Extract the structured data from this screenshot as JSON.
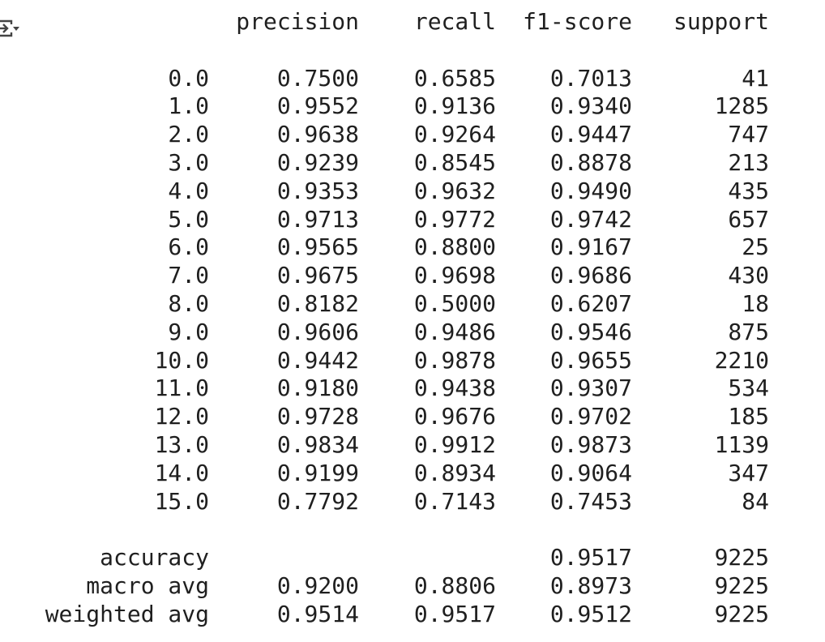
{
  "toolbar": {
    "output_icon": "output-menu-icon"
  },
  "report": {
    "headers": {
      "label": "",
      "precision": "precision",
      "recall": "recall",
      "f1": "f1-score",
      "support": "support"
    },
    "rows": [
      {
        "label": "0.0",
        "precision": "0.7500",
        "recall": "0.6585",
        "f1": "0.7013",
        "support": "41"
      },
      {
        "label": "1.0",
        "precision": "0.9552",
        "recall": "0.9136",
        "f1": "0.9340",
        "support": "1285"
      },
      {
        "label": "2.0",
        "precision": "0.9638",
        "recall": "0.9264",
        "f1": "0.9447",
        "support": "747"
      },
      {
        "label": "3.0",
        "precision": "0.9239",
        "recall": "0.8545",
        "f1": "0.8878",
        "support": "213"
      },
      {
        "label": "4.0",
        "precision": "0.9353",
        "recall": "0.9632",
        "f1": "0.9490",
        "support": "435"
      },
      {
        "label": "5.0",
        "precision": "0.9713",
        "recall": "0.9772",
        "f1": "0.9742",
        "support": "657"
      },
      {
        "label": "6.0",
        "precision": "0.9565",
        "recall": "0.8800",
        "f1": "0.9167",
        "support": "25"
      },
      {
        "label": "7.0",
        "precision": "0.9675",
        "recall": "0.9698",
        "f1": "0.9686",
        "support": "430"
      },
      {
        "label": "8.0",
        "precision": "0.8182",
        "recall": "0.5000",
        "f1": "0.6207",
        "support": "18"
      },
      {
        "label": "9.0",
        "precision": "0.9606",
        "recall": "0.9486",
        "f1": "0.9546",
        "support": "875"
      },
      {
        "label": "10.0",
        "precision": "0.9442",
        "recall": "0.9878",
        "f1": "0.9655",
        "support": "2210"
      },
      {
        "label": "11.0",
        "precision": "0.9180",
        "recall": "0.9438",
        "f1": "0.9307",
        "support": "534"
      },
      {
        "label": "12.0",
        "precision": "0.9728",
        "recall": "0.9676",
        "f1": "0.9702",
        "support": "185"
      },
      {
        "label": "13.0",
        "precision": "0.9834",
        "recall": "0.9912",
        "f1": "0.9873",
        "support": "1139"
      },
      {
        "label": "14.0",
        "precision": "0.9199",
        "recall": "0.8934",
        "f1": "0.9064",
        "support": "347"
      },
      {
        "label": "15.0",
        "precision": "0.7792",
        "recall": "0.7143",
        "f1": "0.7453",
        "support": "84"
      }
    ],
    "summary": [
      {
        "label": "accuracy",
        "precision": "",
        "recall": "",
        "f1": "0.9517",
        "support": "9225"
      },
      {
        "label": "macro avg",
        "precision": "0.9200",
        "recall": "0.8806",
        "f1": "0.8973",
        "support": "9225"
      },
      {
        "label": "weighted avg",
        "precision": "0.9514",
        "recall": "0.9517",
        "f1": "0.9512",
        "support": "9225"
      }
    ]
  }
}
